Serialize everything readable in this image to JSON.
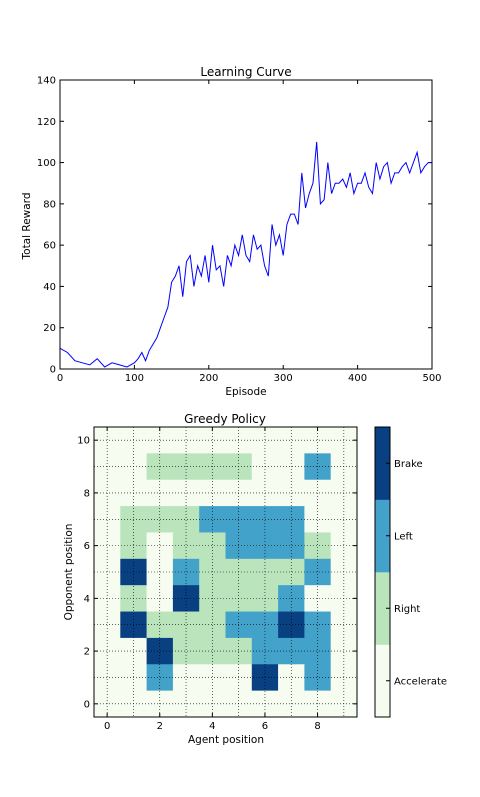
{
  "chart_data": [
    {
      "type": "line",
      "title": "Learning Curve",
      "xlabel": "Episode",
      "ylabel": "Total Reward",
      "xlim": [
        0,
        500
      ],
      "ylim": [
        0,
        140
      ],
      "xticks": [
        0,
        100,
        200,
        300,
        400,
        500
      ],
      "yticks": [
        0,
        20,
        40,
        60,
        80,
        100,
        120,
        140
      ],
      "colors": {
        "line": "#0000ff"
      },
      "series": [
        {
          "x": [
            0,
            10,
            20,
            30,
            40,
            50,
            60,
            70,
            80,
            90,
            100,
            105,
            110,
            115,
            120,
            125,
            130,
            135,
            140,
            145,
            150,
            155,
            160,
            165,
            170,
            175,
            180,
            185,
            190,
            195,
            200,
            205,
            210,
            215,
            220,
            225,
            230,
            235,
            240,
            245,
            250,
            255,
            260,
            265,
            270,
            275,
            280,
            285,
            290,
            295,
            300,
            305,
            310,
            315,
            320,
            325,
            330,
            335,
            340,
            345,
            350,
            355,
            360,
            365,
            370,
            375,
            380,
            385,
            390,
            395,
            400,
            405,
            410,
            415,
            420,
            425,
            430,
            435,
            440,
            445,
            450,
            455,
            460,
            465,
            470,
            475,
            480,
            485,
            490,
            495,
            500
          ],
          "values": [
            10,
            8,
            4,
            3,
            2,
            5,
            1,
            3,
            2,
            1,
            3,
            5,
            8,
            4,
            9,
            12,
            15,
            20,
            25,
            30,
            42,
            45,
            50,
            35,
            52,
            55,
            40,
            50,
            45,
            55,
            42,
            60,
            48,
            50,
            40,
            55,
            50,
            60,
            55,
            65,
            55,
            52,
            65,
            58,
            60,
            50,
            45,
            70,
            60,
            65,
            55,
            70,
            75,
            75,
            70,
            95,
            78,
            85,
            90,
            110,
            80,
            82,
            100,
            85,
            90,
            90,
            92,
            88,
            95,
            85,
            90,
            90,
            95,
            88,
            85,
            100,
            92,
            98,
            100,
            90,
            95,
            95,
            98,
            100,
            95,
            100,
            105,
            95,
            98,
            100,
            100
          ]
        }
      ]
    },
    {
      "type": "heatmap",
      "title": "Greedy Policy",
      "xlabel": "Agent position",
      "ylabel": "Opponent position",
      "xticks": [
        0,
        2,
        4,
        6,
        8
      ],
      "yticks": [
        0,
        2,
        4,
        6,
        8,
        10
      ],
      "xlim": [
        -0.5,
        9.5
      ],
      "ylim": [
        -0.5,
        10.5
      ],
      "grid": true,
      "colorbar": {
        "labels": [
          "Accelerate",
          "Right",
          "Left",
          "Brake"
        ],
        "colors": [
          "#f7fcf0",
          "#bae4bc",
          "#43a2ca",
          "#084081"
        ]
      },
      "matrix_top_to_bottom": [
        [
          0,
          0,
          0,
          0,
          0,
          0,
          0,
          0,
          0,
          0
        ],
        [
          0,
          0,
          1,
          1,
          1,
          1,
          0,
          0,
          2,
          0
        ],
        [
          0,
          0,
          0,
          0,
          0,
          0,
          0,
          0,
          0,
          0
        ],
        [
          0,
          1,
          1,
          1,
          2,
          2,
          2,
          2,
          0,
          0
        ],
        [
          0,
          1,
          0,
          1,
          1,
          2,
          2,
          2,
          1,
          0
        ],
        [
          0,
          3,
          0,
          2,
          1,
          1,
          1,
          1,
          2,
          0
        ],
        [
          0,
          1,
          0,
          3,
          1,
          1,
          1,
          2,
          0,
          0
        ],
        [
          0,
          3,
          1,
          1,
          1,
          2,
          2,
          3,
          2,
          0
        ],
        [
          0,
          0,
          3,
          1,
          1,
          1,
          2,
          2,
          2,
          0
        ],
        [
          0,
          0,
          2,
          0,
          0,
          0,
          3,
          0,
          2,
          0
        ],
        [
          0,
          0,
          0,
          0,
          0,
          0,
          0,
          0,
          0,
          0
        ]
      ]
    }
  ]
}
